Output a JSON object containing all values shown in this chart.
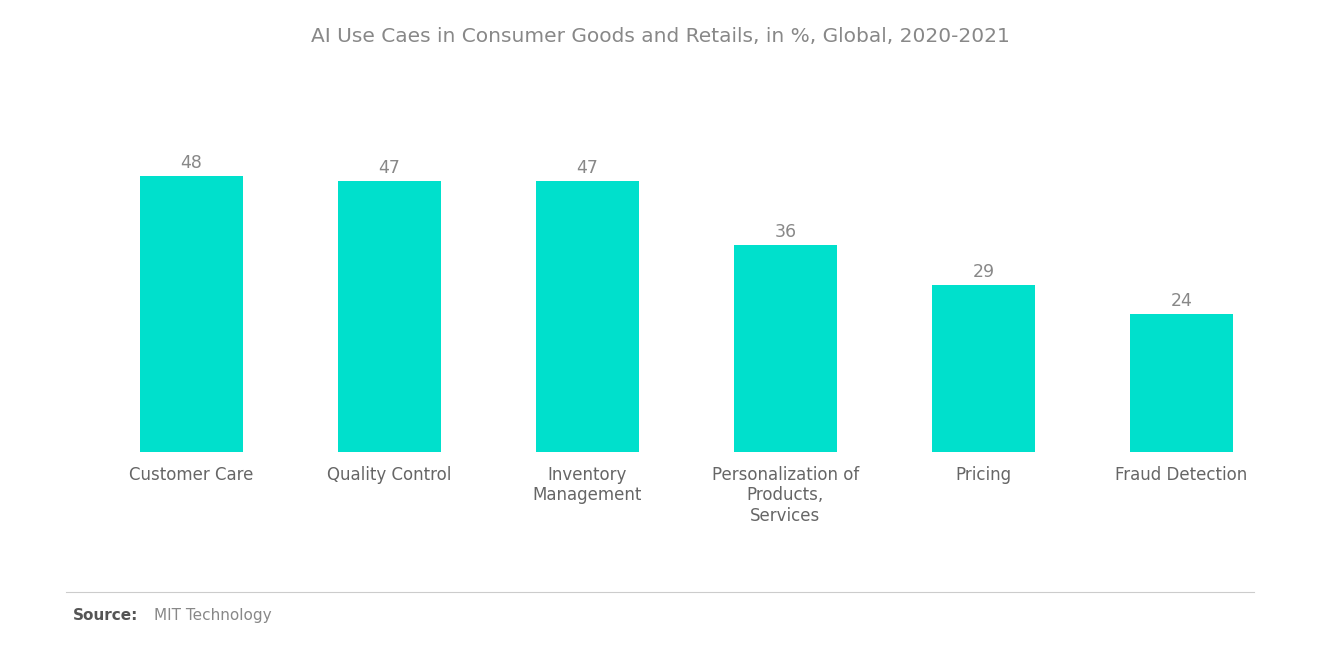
{
  "title": "AI Use Caes in Consumer Goods and Retails, in %, Global, 2020-2021",
  "categories": [
    "Customer Care",
    "Quality Control",
    "Inventory\nManagement",
    "Personalization of\nProducts,\nServices",
    "Pricing",
    "Fraud Detection"
  ],
  "values": [
    48,
    47,
    47,
    36,
    29,
    24
  ],
  "bar_color": "#00E0CC",
  "value_color": "#888888",
  "title_color": "#888888",
  "label_color": "#666666",
  "background_color": "#ffffff",
  "ylim": [
    0,
    60
  ],
  "bar_width": 0.52,
  "title_fontsize": 14.5,
  "label_fontsize": 12,
  "value_fontsize": 12.5,
  "source_bold": "Source:",
  "source_text": "MIT Technology"
}
